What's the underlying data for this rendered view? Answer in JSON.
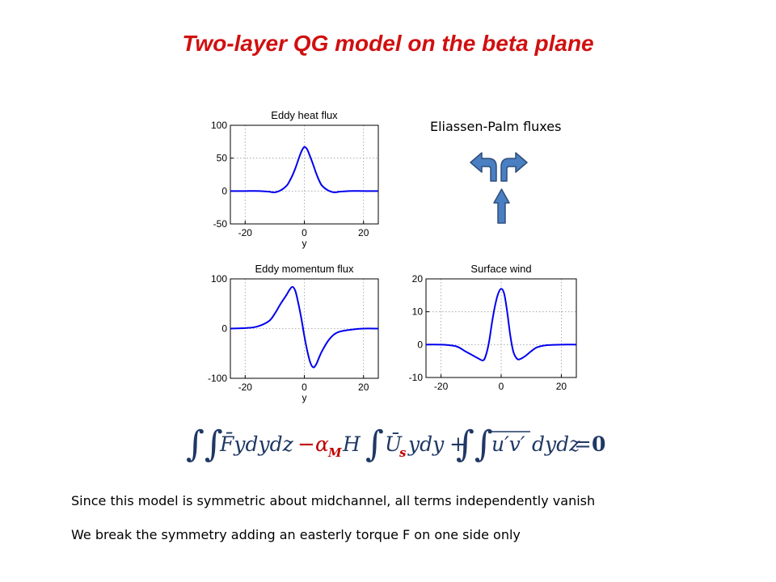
{
  "title": "Two-layer QG model on the beta plane",
  "ep_label": "Eliassen-Palm fluxes",
  "text_lines": [
    "Since this model is symmetric about midchannel, all terms independently vanish",
    "We break the symmetry adding an easterly torque F on one side only"
  ],
  "equation": {
    "integral": "∫∫",
    "integral_single": "∫",
    "term1": "F̄ydydz",
    "minus": "−",
    "alpha": "α",
    "alpha_sub": "M",
    "H": "H",
    "U": "Ū",
    "U_sub": "s",
    "term2_rest": "ydy",
    "plus": "+",
    "term3": "u′v′",
    "term3_rest": "dydz",
    "equals": "=",
    "zero": "0"
  },
  "colors": {
    "title": "#d01010",
    "curve": "#0000ee",
    "arrow_fill": "#4a7fc1",
    "arrow_stroke": "#2e4f7c",
    "equation": "#1f3864"
  },
  "icons": [
    "curved-arrow-left-icon",
    "curved-arrow-right-icon",
    "up-arrow-icon"
  ],
  "chart_data": [
    {
      "type": "line",
      "title": "Eddy heat flux",
      "xlabel": "y",
      "ylabel": "",
      "xlim": [
        -25,
        25
      ],
      "ylim": [
        -50,
        100
      ],
      "xticks": [
        -20,
        0,
        20
      ],
      "yticks": [
        -50,
        0,
        50,
        100
      ],
      "grid": true,
      "x": [
        -25,
        -20,
        -15,
        -12,
        -10,
        -8,
        -6,
        -5,
        -4,
        -3,
        -2,
        -1,
        0,
        1,
        2,
        3,
        4,
        5,
        6,
        8,
        10,
        12,
        15,
        20,
        25
      ],
      "y": [
        0,
        0,
        0,
        -1,
        -2,
        1,
        8,
        15,
        24,
        35,
        48,
        60,
        67,
        63,
        52,
        40,
        27,
        16,
        8,
        1,
        -2,
        -1,
        0,
        0,
        0
      ]
    },
    {
      "type": "line",
      "title": "Eddy momentum flux",
      "xlabel": "y",
      "ylabel": "",
      "xlim": [
        -25,
        25
      ],
      "ylim": [
        -100,
        100
      ],
      "xticks": [
        -20,
        0,
        20
      ],
      "yticks": [
        -100,
        0,
        100
      ],
      "grid": true,
      "x": [
        -25,
        -20,
        -16,
        -12,
        -10,
        -8,
        -6,
        -5,
        -4,
        -3,
        -2,
        -1,
        0,
        1,
        2,
        3,
        4,
        5,
        6,
        8,
        10,
        12,
        16,
        20,
        25
      ],
      "y": [
        0,
        1,
        4,
        15,
        30,
        50,
        68,
        78,
        84,
        75,
        50,
        20,
        -15,
        -45,
        -68,
        -78,
        -72,
        -58,
        -45,
        -25,
        -12,
        -6,
        -2,
        0,
        0
      ]
    },
    {
      "type": "line",
      "title": "Surface wind",
      "xlabel": "",
      "ylabel": "",
      "xlim": [
        -25,
        25
      ],
      "ylim": [
        -10,
        20
      ],
      "xticks": [
        -20,
        0,
        20
      ],
      "yticks": [
        -10,
        0,
        10,
        20
      ],
      "grid": true,
      "x": [
        -25,
        -20,
        -15,
        -12,
        -10,
        -8,
        -6,
        -5,
        -4,
        -3,
        -2,
        -1,
        0,
        1,
        2,
        3,
        4,
        5,
        6,
        8,
        10,
        12,
        15,
        20,
        25
      ],
      "y": [
        0,
        0,
        -0.5,
        -2,
        -3,
        -4,
        -4.8,
        -3,
        1,
        7,
        12,
        15.5,
        17,
        15.5,
        10,
        3,
        -2,
        -4,
        -4.5,
        -3.5,
        -2,
        -0.8,
        -0.2,
        0,
        0
      ]
    }
  ]
}
